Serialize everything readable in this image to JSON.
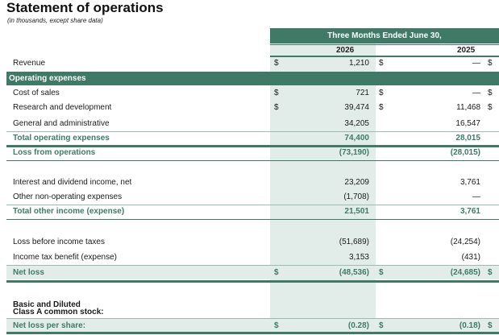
{
  "title": "Statement of operations",
  "subtitle": "(in thousands, except share data)",
  "header": {
    "period": "Three Months Ended June 30,",
    "year1": "2026",
    "year2": "2025"
  },
  "rows": {
    "revenue": {
      "label": "Revenue",
      "d1": "$",
      "v1": "1,210",
      "d2": "$",
      "v2": "—",
      "d3": "$"
    },
    "opex_band": {
      "label": "Operating expenses"
    },
    "cost_of_sales": {
      "label": "Cost of sales",
      "d1": "$",
      "v1": "721",
      "d2": "$",
      "v2": "—",
      "d3": "$"
    },
    "rnd": {
      "label": "Research and development",
      "d1": "$",
      "v1": "39,474",
      "d2": "$",
      "v2": "11,468",
      "d3": "$"
    },
    "gna": {
      "label": "General and administrative",
      "v1": "34,205",
      "v2": "16,547"
    },
    "total_opex": {
      "label": "Total operating expenses",
      "v1": "74,400",
      "v2": "28,015"
    },
    "loss_ops": {
      "label": "Loss from operations",
      "v1": "(73,190)",
      "v2": "(28,015)"
    },
    "interest": {
      "label": "Interest and dividend income, net",
      "v1": "23,209",
      "v2": "3,761"
    },
    "other_nonop": {
      "label": "Other non-operating expenses",
      "v1": "(1,708)",
      "v2": "—"
    },
    "total_other": {
      "label": "Total other income (expense)",
      "v1": "21,501",
      "v2": "3,761"
    },
    "loss_before_tax": {
      "label": "Loss before income taxes",
      "v1": "(51,689)",
      "v2": "(24,254)"
    },
    "tax": {
      "label": "Income tax benefit (expense)",
      "v1": "3,153",
      "v2": "(431)"
    },
    "net_loss": {
      "label": "Net loss",
      "d1": "$",
      "v1": "(48,536)",
      "d2": "$",
      "v2": "(24,685)",
      "d3": "$"
    },
    "basic_line1": {
      "label": "Basic and Diluted"
    },
    "basic_line2": {
      "label": "Class A common stock:"
    },
    "eps": {
      "label": "Net loss per share:",
      "d1": "$",
      "v1": "(0.28)",
      "d2": "$",
      "v2": "(0.18)",
      "d3": "$"
    }
  },
  "colors": {
    "accent": "#3f7a67",
    "shade": "#e2ede9"
  }
}
